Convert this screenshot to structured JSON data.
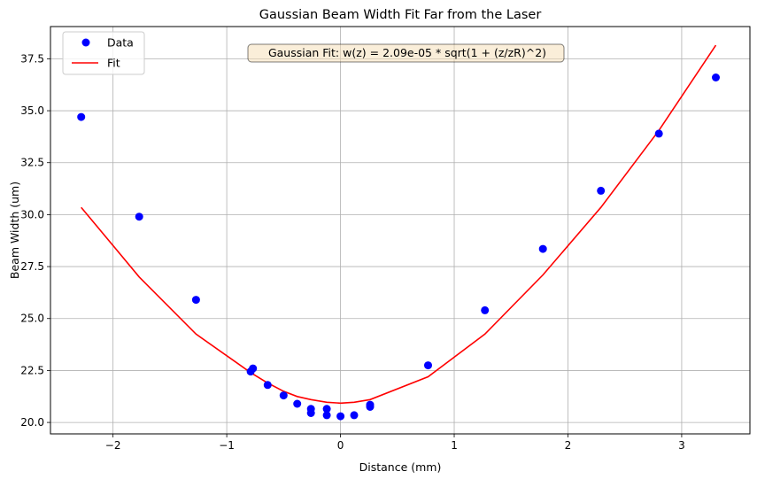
{
  "chart_data": {
    "type": "scatter",
    "title": "Gaussian Beam Width Fit Far from the Laser",
    "xlabel": "Distance (mm)",
    "ylabel": "Beam Width (um)",
    "xlim": [
      -2.55,
      3.6
    ],
    "ylim": [
      19.45,
      39.05
    ],
    "xticks": [
      -2,
      -1,
      0,
      1,
      2,
      3
    ],
    "yticks": [
      20.0,
      22.5,
      25.0,
      27.5,
      30.0,
      32.5,
      35.0,
      37.5
    ],
    "xtick_labels": [
      "−2",
      "−1",
      "0",
      "1",
      "2",
      "3"
    ],
    "ytick_labels": [
      "20.0",
      "22.5",
      "25.0",
      "27.5",
      "30.0",
      "32.5",
      "35.0",
      "37.5"
    ],
    "grid": true,
    "legend": {
      "placement": "top-left",
      "entries": [
        "Data",
        "Fit"
      ]
    },
    "annotation": "Gaussian Fit: w(z) = 2.09e-05 * sqrt(1 + (z/zR)^2)",
    "series": [
      {
        "name": "Data",
        "kind": "scatter",
        "color": "#0000ff",
        "points": [
          [
            -2.28,
            34.7
          ],
          [
            -1.77,
            29.9
          ],
          [
            -1.27,
            25.9
          ],
          [
            -0.79,
            22.45
          ],
          [
            -0.77,
            22.6
          ],
          [
            -0.64,
            21.8
          ],
          [
            -0.5,
            21.3
          ],
          [
            -0.38,
            20.9
          ],
          [
            -0.26,
            20.65
          ],
          [
            -0.26,
            20.45
          ],
          [
            -0.12,
            20.65
          ],
          [
            -0.12,
            20.35
          ],
          [
            0.0,
            20.3
          ],
          [
            0.12,
            20.35
          ],
          [
            0.26,
            20.75
          ],
          [
            0.26,
            20.85
          ],
          [
            0.77,
            22.75
          ],
          [
            1.27,
            25.4
          ],
          [
            1.78,
            28.35
          ],
          [
            2.29,
            31.15
          ],
          [
            2.8,
            33.9
          ],
          [
            3.3,
            36.6
          ]
        ]
      },
      {
        "name": "Fit",
        "kind": "line",
        "color": "#ff0000",
        "points": [
          [
            -2.28,
            30.35
          ],
          [
            -1.77,
            27.0
          ],
          [
            -1.27,
            24.25
          ],
          [
            -0.79,
            22.4
          ],
          [
            -0.64,
            21.9
          ],
          [
            -0.5,
            21.5
          ],
          [
            -0.38,
            21.25
          ],
          [
            -0.26,
            21.1
          ],
          [
            -0.12,
            20.97
          ],
          [
            0.0,
            20.93
          ],
          [
            0.12,
            20.97
          ],
          [
            0.26,
            21.1
          ],
          [
            0.77,
            22.2
          ],
          [
            1.27,
            24.25
          ],
          [
            1.78,
            27.1
          ],
          [
            2.29,
            30.35
          ],
          [
            2.8,
            34.05
          ],
          [
            3.3,
            38.15
          ]
        ]
      }
    ]
  }
}
